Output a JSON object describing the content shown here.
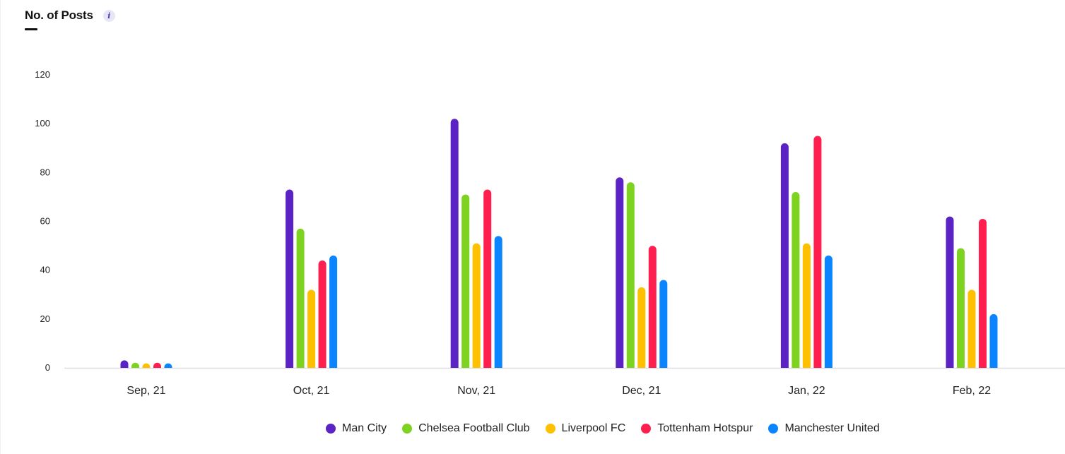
{
  "header": {
    "title": "No. of Posts",
    "info_icon": "info-icon"
  },
  "chart_data": {
    "type": "bar",
    "categories": [
      "Sep, 21",
      "Oct, 21",
      "Nov, 21",
      "Dec, 21",
      "Jan, 22",
      "Feb, 22"
    ],
    "series": [
      {
        "name": "Man City",
        "color": "#5b22c4",
        "values": [
          3,
          73,
          102,
          78,
          92,
          62
        ]
      },
      {
        "name": "Chelsea Football Club",
        "color": "#7ed321",
        "values": [
          1,
          57,
          71,
          76,
          72,
          49
        ]
      },
      {
        "name": "Liverpool FC",
        "color": "#ffc000",
        "values": [
          0.5,
          32,
          51,
          33,
          51,
          32
        ]
      },
      {
        "name": "Tottenham Hotspur",
        "color": "#ff1f4f",
        "values": [
          1,
          44,
          73,
          50,
          95,
          61
        ]
      },
      {
        "name": "Manchester United",
        "color": "#0a85ff",
        "values": [
          0.5,
          46,
          54,
          36,
          46,
          22
        ]
      }
    ],
    "y_ticks": [
      "0",
      "20",
      "40",
      "60",
      "80",
      "100",
      "120"
    ],
    "ylim": [
      0,
      120
    ],
    "grid": false,
    "legend_position": "bottom-center"
  }
}
